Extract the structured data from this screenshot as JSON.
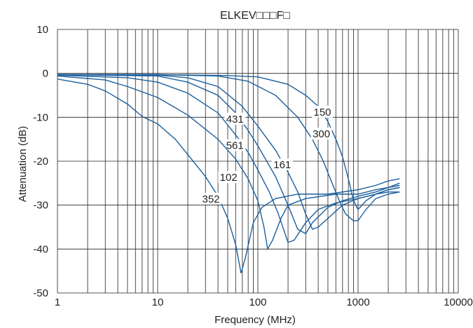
{
  "chart_data": {
    "type": "line",
    "title": "ELKEV□□□F□",
    "xlabel": "Frequency (MHz)",
    "ylabel": "Attenuation (dB)",
    "x_scale": "log",
    "xlim": [
      1,
      10000
    ],
    "ylim": [
      -50,
      10
    ],
    "x_ticks": [
      "1",
      "10",
      "100",
      "1000",
      "10000"
    ],
    "x_tick_values": [
      1,
      10,
      100,
      1000,
      10000
    ],
    "y_ticks": [
      "10",
      "0",
      "-10",
      "-20",
      "-30",
      "-40",
      "-50"
    ],
    "y_tick_values": [
      10,
      0,
      -10,
      -20,
      -30,
      -40,
      -50
    ],
    "grid": true,
    "line_color": "#1b5f9e",
    "series": [
      {
        "name": "150",
        "points": [
          [
            1,
            -0.3
          ],
          [
            10,
            -0.3
          ],
          [
            50,
            -0.5
          ],
          [
            100,
            -0.8
          ],
          [
            200,
            -2.5
          ],
          [
            300,
            -5
          ],
          [
            400,
            -7.5
          ],
          [
            500,
            -11
          ],
          [
            600,
            -15
          ],
          [
            700,
            -19
          ],
          [
            800,
            -24
          ],
          [
            900,
            -29
          ],
          [
            1000,
            -31
          ],
          [
            1200,
            -29
          ],
          [
            1500,
            -27.5
          ],
          [
            2000,
            -26.5
          ],
          [
            2600,
            -26
          ]
        ],
        "label_at": [
          440,
          -8.8
        ]
      },
      {
        "name": "300",
        "points": [
          [
            1,
            -0.3
          ],
          [
            10,
            -0.3
          ],
          [
            40,
            -0.6
          ],
          [
            80,
            -1.8
          ],
          [
            150,
            -5
          ],
          [
            250,
            -10
          ],
          [
            350,
            -15
          ],
          [
            450,
            -20
          ],
          [
            550,
            -25
          ],
          [
            650,
            -29
          ],
          [
            750,
            -32
          ],
          [
            900,
            -33.6
          ],
          [
            1000,
            -33.5
          ],
          [
            1200,
            -31
          ],
          [
            1500,
            -28.5
          ],
          [
            2000,
            -27.5
          ],
          [
            2600,
            -27
          ]
        ],
        "label_at": [
          430,
          -13.8
        ]
      },
      {
        "name": "161",
        "points": [
          [
            1,
            -0.3
          ],
          [
            10,
            -0.4
          ],
          [
            20,
            -1
          ],
          [
            40,
            -3
          ],
          [
            70,
            -7.5
          ],
          [
            100,
            -12
          ],
          [
            150,
            -17.5
          ],
          [
            200,
            -22.5
          ],
          [
            250,
            -27
          ],
          [
            300,
            -32
          ],
          [
            350,
            -35.5
          ],
          [
            400,
            -35
          ],
          [
            500,
            -33
          ],
          [
            700,
            -30
          ],
          [
            1000,
            -28.5
          ],
          [
            1500,
            -27.5
          ],
          [
            2000,
            -27
          ],
          [
            2600,
            -27
          ]
        ],
        "label_at": [
          175,
          -20.8
        ]
      },
      {
        "name": "431",
        "points": [
          [
            1,
            -0.3
          ],
          [
            10,
            -0.6
          ],
          [
            20,
            -2
          ],
          [
            40,
            -5
          ],
          [
            60,
            -9
          ],
          [
            80,
            -13
          ],
          [
            100,
            -16.5
          ],
          [
            150,
            -23.5
          ],
          [
            200,
            -30
          ],
          [
            250,
            -35.5
          ],
          [
            300,
            -36.5
          ],
          [
            350,
            -34
          ],
          [
            500,
            -30.5
          ],
          [
            700,
            -29
          ],
          [
            1000,
            -28
          ],
          [
            1500,
            -27
          ],
          [
            2000,
            -26
          ],
          [
            2600,
            -25.5
          ]
        ],
        "label_at": [
          59,
          -10.4
        ]
      },
      {
        "name": "561",
        "points": [
          [
            1,
            -0.4
          ],
          [
            5,
            -1
          ],
          [
            10,
            -2
          ],
          [
            20,
            -4.5
          ],
          [
            40,
            -9
          ],
          [
            60,
            -14
          ],
          [
            80,
            -18
          ],
          [
            100,
            -22
          ],
          [
            130,
            -27
          ],
          [
            160,
            -32
          ],
          [
            200,
            -38.5
          ],
          [
            230,
            -38
          ],
          [
            300,
            -34
          ],
          [
            400,
            -31
          ],
          [
            600,
            -29.5
          ],
          [
            1000,
            -28.5
          ],
          [
            1500,
            -27.5
          ],
          [
            2000,
            -26.5
          ],
          [
            2600,
            -26
          ]
        ],
        "label_at": [
          59,
          -16.4
        ]
      },
      {
        "name": "102",
        "points": [
          [
            1,
            -0.6
          ],
          [
            3,
            -1.5
          ],
          [
            5,
            -3
          ],
          [
            10,
            -5.5
          ],
          [
            20,
            -9.5
          ],
          [
            40,
            -15
          ],
          [
            60,
            -19.5
          ],
          [
            80,
            -24
          ],
          [
            100,
            -29
          ],
          [
            115,
            -35
          ],
          [
            125,
            -40
          ],
          [
            140,
            -38
          ],
          [
            170,
            -33
          ],
          [
            200,
            -30
          ],
          [
            300,
            -28.5
          ],
          [
            600,
            -27.5
          ],
          [
            1000,
            -27.5
          ],
          [
            1500,
            -26.5
          ],
          [
            2000,
            -26
          ],
          [
            2600,
            -25
          ]
        ],
        "label_at": [
          51,
          -23.7
        ]
      },
      {
        "name": "352",
        "points": [
          [
            1,
            -1.3
          ],
          [
            2,
            -2.5
          ],
          [
            3,
            -4
          ],
          [
            5,
            -7
          ],
          [
            7,
            -9.8
          ],
          [
            10,
            -11.5
          ],
          [
            15,
            -15
          ],
          [
            20,
            -18.5
          ],
          [
            30,
            -23.5
          ],
          [
            40,
            -28
          ],
          [
            50,
            -33
          ],
          [
            60,
            -39
          ],
          [
            68,
            -45.5
          ],
          [
            75,
            -42
          ],
          [
            90,
            -34
          ],
          [
            110,
            -30.5
          ],
          [
            150,
            -28.5
          ],
          [
            250,
            -27.5
          ],
          [
            500,
            -27.5
          ],
          [
            1000,
            -26.5
          ],
          [
            1500,
            -25.5
          ],
          [
            2000,
            -24.5
          ],
          [
            2600,
            -24
          ]
        ],
        "label_at": [
          34,
          -28.6
        ]
      }
    ]
  }
}
